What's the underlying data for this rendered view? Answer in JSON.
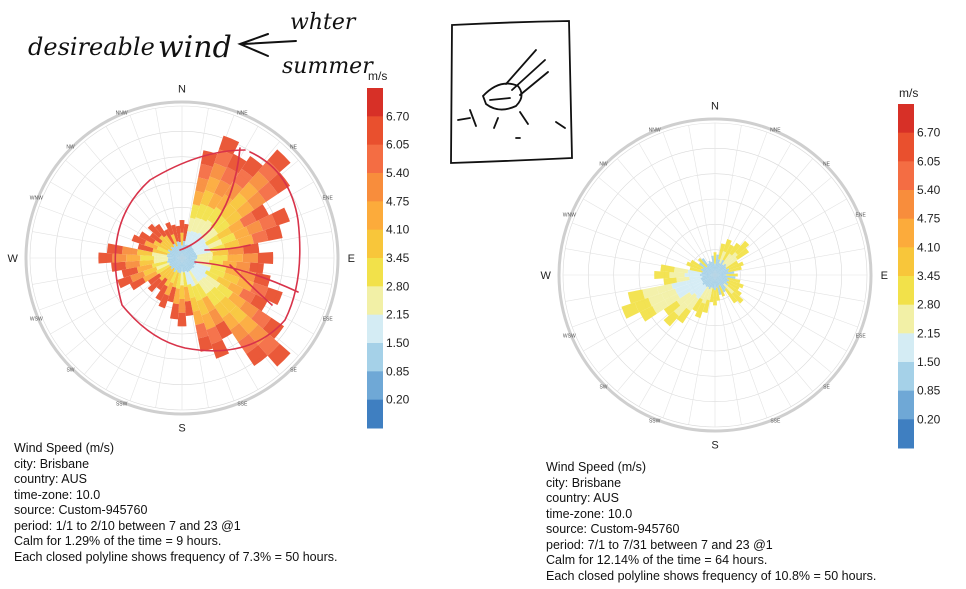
{
  "handwriting": {
    "desireable": "desireable",
    "wind": "wind",
    "winter": "whter",
    "summer": "summer"
  },
  "chart_data": [
    {
      "type": "wind-rose",
      "directions": [
        "N",
        "NNE",
        "NE",
        "ENE",
        "E",
        "ESE",
        "SE",
        "SSE",
        "S",
        "SSW",
        "SW",
        "WSW",
        "W",
        "WNW",
        "NW",
        "NNW"
      ],
      "colorbar_unit": "m/s",
      "colorbar_ticks": [
        "6.70",
        "6.05",
        "5.40",
        "4.75",
        "4.10",
        "3.45",
        "2.80",
        "2.15",
        "1.50",
        "0.85",
        "0.20"
      ],
      "colors": [
        "#d73027",
        "#e9502e",
        "#f46d43",
        "#f88d3c",
        "#fcab3b",
        "#f8c63a",
        "#f2e14a",
        "#f2f0a6",
        "#d4ecf4",
        "#a5d1e8",
        "#6fa8d6",
        "#3f7fc1"
      ],
      "petals_rel": [
        0.25,
        0.85,
        0.95,
        0.75,
        0.6,
        0.7,
        0.95,
        0.7,
        0.45,
        0.35,
        0.3,
        0.45,
        0.55,
        0.35,
        0.3,
        0.25
      ],
      "calm_pct": 1.29,
      "info_lines": [
        "Wind Speed (m/s)",
        "city: Brisbane",
        "country: AUS",
        "time-zone: 10.0",
        "source: Custom-945760",
        "period: 1/1 to 2/10 between 7 and 23 @1",
        "Calm for 1.29% of the time = 9 hours.",
        "Each closed polyline shows frequency of 7.3% = 50 hours."
      ]
    },
    {
      "type": "wind-rose",
      "directions": [
        "N",
        "NNE",
        "NE",
        "ENE",
        "E",
        "ESE",
        "SE",
        "SSE",
        "S",
        "SSW",
        "SW",
        "WSW",
        "W",
        "WNW",
        "NW",
        "NNW"
      ],
      "colorbar_unit": "m/s",
      "colorbar_ticks": [
        "6.70",
        "6.05",
        "5.40",
        "4.75",
        "4.10",
        "3.45",
        "2.80",
        "2.15",
        "1.50",
        "0.85",
        "0.20"
      ],
      "colors": [
        "#d73027",
        "#e9502e",
        "#f46d43",
        "#f88d3c",
        "#fcab3b",
        "#f8c63a",
        "#f2e14a",
        "#f2f0a6",
        "#d4ecf4",
        "#a5d1e8",
        "#6fa8d6",
        "#3f7fc1"
      ],
      "petals_rel": [
        0.15,
        0.25,
        0.3,
        0.2,
        0.15,
        0.2,
        0.25,
        0.15,
        0.2,
        0.3,
        0.45,
        0.65,
        0.4,
        0.2,
        0.15,
        0.1
      ],
      "calm_pct": 12.14,
      "info_lines": [
        "Wind Speed (m/s)",
        "city: Brisbane",
        "country: AUS",
        "time-zone: 10.0",
        "source: Custom-945760",
        "period: 7/1 to 7/31 between 7 and 23 @1",
        "Calm for 12.14% of the time = 64 hours.",
        "Each closed polyline shows frequency of 10.8% = 50 hours."
      ]
    }
  ]
}
